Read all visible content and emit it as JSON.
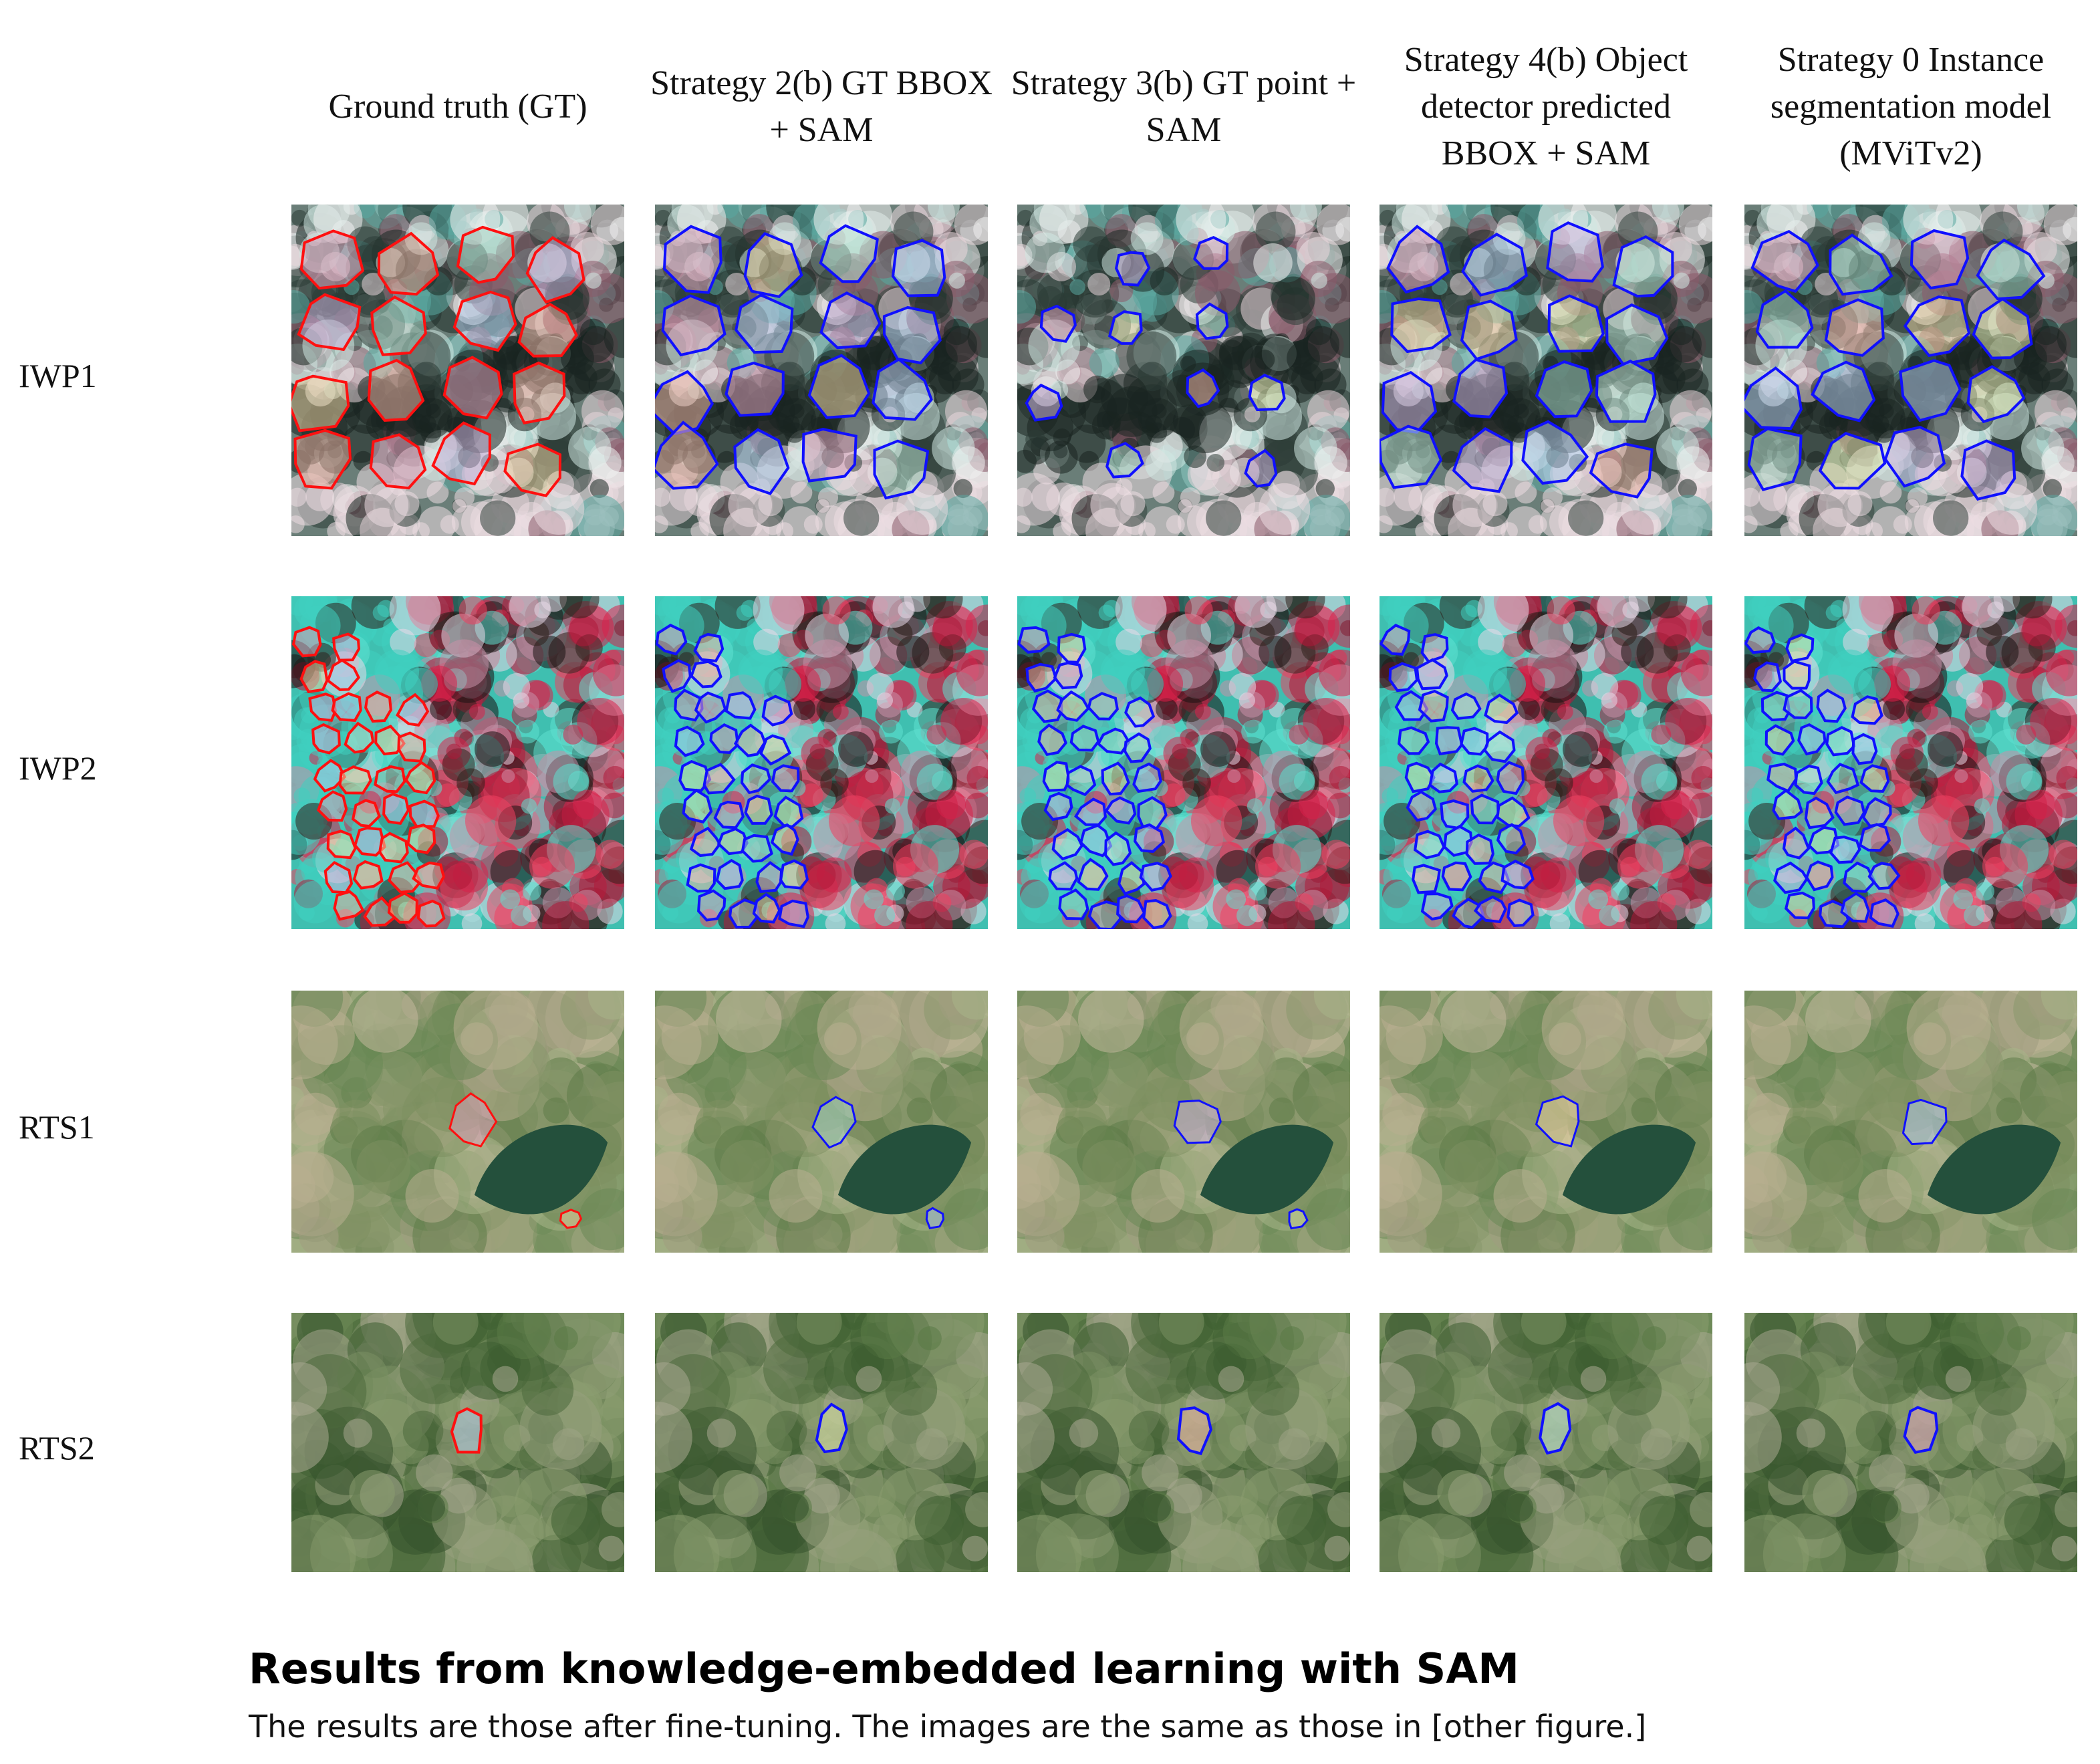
{
  "columns": [
    "Ground truth (GT)",
    "Strategy 2(b) GT BBOX + SAM",
    "Strategy 3(b) GT point + SAM",
    "Strategy 4(b) Object detector predicted BBOX + SAM",
    "Strategy 0 Instance segmentation model (MViTv2)"
  ],
  "rows": [
    "IWP1",
    "IWP2",
    "RTS1",
    "RTS2"
  ],
  "caption": {
    "title": "Results from knowledge-embedded learning with SAM",
    "text": "The results are those after fine-tuning. The images are the same as those in [other figure.]"
  }
}
